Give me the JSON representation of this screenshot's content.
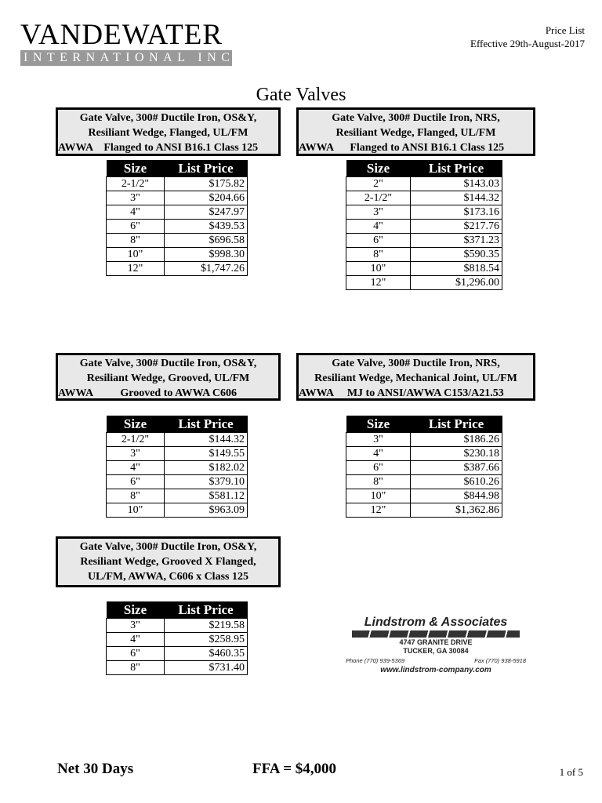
{
  "header": {
    "logo_main": "VANDEWATER",
    "logo_sub": "INTERNATIONAL INC.",
    "doc_type": "Price List",
    "effective": "Effective 29th-August-2017"
  },
  "title": "Gate Valves",
  "column_headers": {
    "size": "Size",
    "price": "List Price"
  },
  "sections": [
    {
      "lines": [
        "Gate Valve, 300# Ductile Iron, OS&Y,",
        "Resiliant Wedge, Flanged, UL/FM",
        "AWWA    Flanged to ANSI B16.1 Class 125"
      ],
      "rows": [
        [
          "2-1/2\"",
          "$175.82"
        ],
        [
          "3\"",
          "$204.66"
        ],
        [
          "4\"",
          "$247.97"
        ],
        [
          "6\"",
          "$439.53"
        ],
        [
          "8\"",
          "$696.58"
        ],
        [
          "10\"",
          "$998.30"
        ],
        [
          "12\"",
          "$1,747.26"
        ]
      ]
    },
    {
      "lines": [
        "Gate Valve, 300# Ductile Iron, NRS,",
        "Resiliant Wedge, Flanged, UL/FM",
        "AWWA      Flanged to ANSI B16.1 Class 125"
      ],
      "rows": [
        [
          "2\"",
          "$143.03"
        ],
        [
          "2-1/2\"",
          "$144.32"
        ],
        [
          "3\"",
          "$173.16"
        ],
        [
          "4\"",
          "$217.76"
        ],
        [
          "6\"",
          "$371.23"
        ],
        [
          "8\"",
          "$590.35"
        ],
        [
          "10\"",
          "$818.54"
        ],
        [
          "12\"",
          "$1,296.00"
        ]
      ]
    },
    {
      "lines": [
        "Gate Valve, 300# Ductile Iron, OS&Y,",
        "Resiliant Wedge, Grooved, UL/FM",
        "AWWA          Grooved to AWWA C606"
      ],
      "rows": [
        [
          "2-1/2\"",
          "$144.32"
        ],
        [
          "3\"",
          "$149.55"
        ],
        [
          "4\"",
          "$182.02"
        ],
        [
          "6\"",
          "$379.10"
        ],
        [
          "8\"",
          "$581.12"
        ],
        [
          "10\"",
          "$963.09"
        ]
      ]
    },
    {
      "lines": [
        "Gate Valve, 300# Ductile Iron, NRS,",
        "Resiliant Wedge, Mechanical Joint, UL/FM",
        "AWWA     MJ to ANSI/AWWA C153/A21.53"
      ],
      "rows": [
        [
          "3\"",
          "$186.26"
        ],
        [
          "4\"",
          "$230.18"
        ],
        [
          "6\"",
          "$387.66"
        ],
        [
          "8\"",
          "$610.26"
        ],
        [
          "10\"",
          "$844.98"
        ],
        [
          "12\"",
          "$1,362.86"
        ]
      ]
    },
    {
      "lines": [
        "Gate Valve, 300# Ductile Iron, OS&Y,",
        "Resiliant Wedge, Grooved X Flanged,",
        "UL/FM, AWWA,  C606 x Class 125"
      ],
      "rows": [
        [
          "3\"",
          "$219.58"
        ],
        [
          "4\"",
          "$258.95"
        ],
        [
          "6\"",
          "$460.35"
        ],
        [
          "8\"",
          "$731.40"
        ]
      ]
    }
  ],
  "rep": {
    "name": "Lindstrom & Associates",
    "street": "4747 GRANITE DRIVE",
    "city": "TUCKER, GA  30084",
    "phone": "Phone (770) 939-5369",
    "fax": "Fax (770) 938-5918",
    "web": "www.lindstrom-company.com"
  },
  "footer": {
    "terms": "Net 30 Days",
    "ffa": "FFA = $4,000",
    "page": "1 of 5"
  }
}
